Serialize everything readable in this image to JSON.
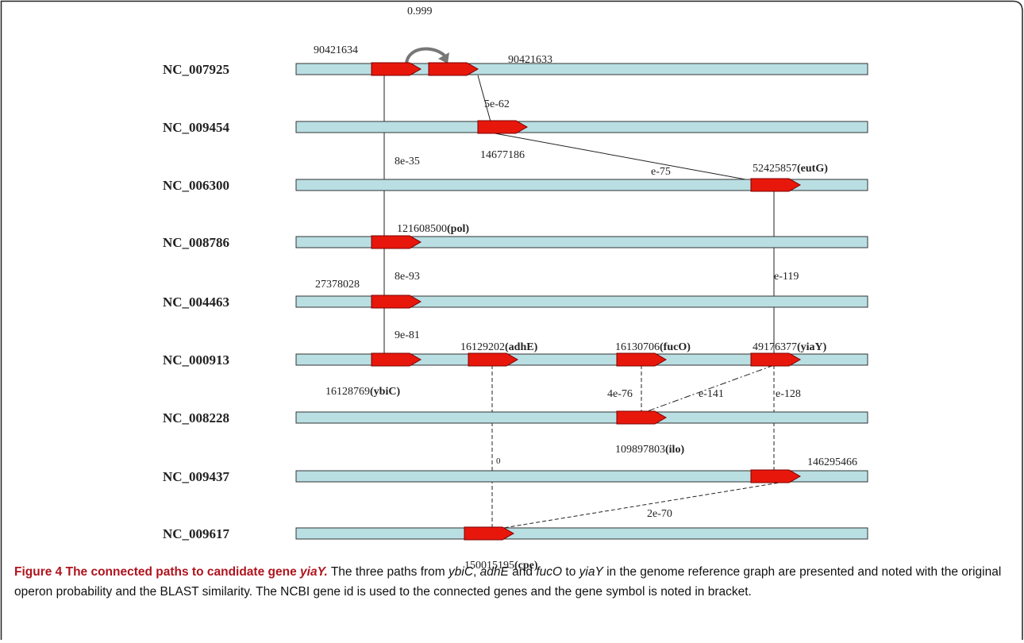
{
  "genomes": [
    "NC_007925",
    "NC_009454",
    "NC_006300",
    "NC_008786",
    "NC_004463",
    "NC_000913",
    "NC_008228",
    "NC_009437",
    "NC_009617"
  ],
  "gene_labels": [
    "90421634",
    "90421633",
    "14677186",
    "52425857(eutG)",
    "121608500(pol)",
    "27378028",
    "16128769(ybiC)",
    "16129202(adhE)",
    "16130706(fucO)",
    "49176377(yiaY)",
    "109897803(ilo)",
    "146295466",
    "150015195(cpe)"
  ],
  "similarities": [
    "0.999",
    "5e-62",
    "8e-35",
    "e-75",
    "8e-93",
    "e-119",
    "9e-81",
    "4e-76",
    "e-141",
    "e-128",
    "0",
    "2e-70"
  ],
  "caption": {
    "label": "Figure 4 The connected paths to candidate gene ",
    "label_gene": "yiaY.",
    "body": [
      " The three paths from ",
      "ybiC",
      ", ",
      "adhE",
      " and ",
      "fucO",
      " to ",
      "yiaY",
      " in the genome reference graph are presented and noted with the original operon probability and the BLAST similarity. The NCBI gene id is used to the connected genes and the gene symbol is noted in bracket."
    ]
  }
}
